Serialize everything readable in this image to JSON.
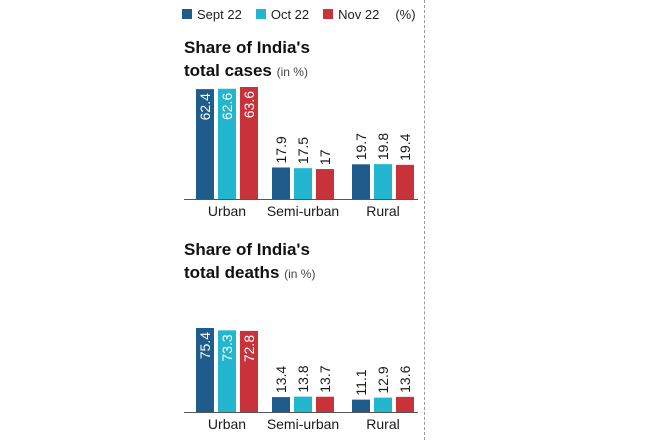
{
  "legend": {
    "items": [
      {
        "label": "Sept 22",
        "color": "#1f5c8b"
      },
      {
        "label": "Oct 22",
        "color": "#22b6cf"
      },
      {
        "label": "Nov 22",
        "color": "#c8323b"
      }
    ],
    "unit": "(%)"
  },
  "chart_data": [
    {
      "type": "bar",
      "title_line1": "Share of India's",
      "title_line2": "total cases",
      "title_unit": "(in %)",
      "categories": [
        "Urban",
        "Semi-urban",
        "Rural"
      ],
      "series": [
        {
          "name": "Sept 22",
          "color": "#1f5c8b",
          "values": [
            62.4,
            17.9,
            19.7
          ],
          "labels": [
            "62.4",
            "17.9",
            "19.7"
          ]
        },
        {
          "name": "Oct 22",
          "color": "#22b6cf",
          "values": [
            62.6,
            17.5,
            19.8
          ],
          "labels": [
            "62.6",
            "17.5",
            "19.8"
          ]
        },
        {
          "name": "Nov 22",
          "color": "#c8323b",
          "values": [
            63.6,
            17,
            19.4
          ],
          "labels": [
            "63.6",
            "17",
            "19.4"
          ]
        }
      ],
      "ylim": [
        0,
        70
      ],
      "grid": false
    },
    {
      "type": "bar",
      "title_line1": "Share of India's",
      "title_line2": "total deaths",
      "title_unit": "(in %)",
      "categories": [
        "Urban",
        "Semi-urban",
        "Rural"
      ],
      "series": [
        {
          "name": "Sept 22",
          "color": "#1f5c8b",
          "values": [
            75.4,
            13.4,
            11.1
          ],
          "labels": [
            "75.4",
            "13.4",
            "11.1"
          ]
        },
        {
          "name": "Oct 22",
          "color": "#22b6cf",
          "values": [
            73.3,
            13.8,
            12.9
          ],
          "labels": [
            "73.3",
            "13.8",
            "12.9"
          ]
        },
        {
          "name": "Nov 22",
          "color": "#c8323b",
          "values": [
            72.8,
            13.7,
            13.6
          ],
          "labels": [
            "72.8",
            "13.7",
            "13.6"
          ]
        }
      ],
      "ylim": [
        0,
        85
      ],
      "grid": false
    }
  ]
}
